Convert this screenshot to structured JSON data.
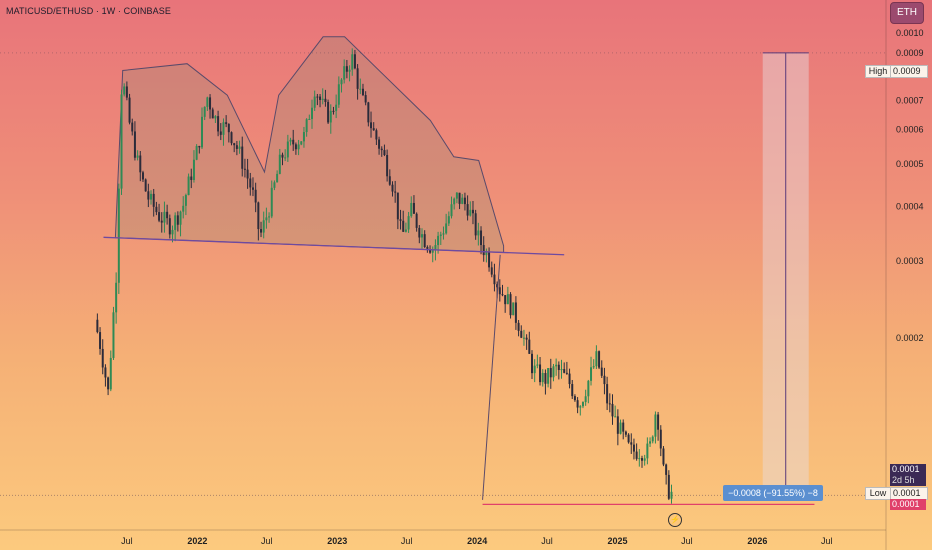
{
  "header": {
    "title": "MATICUSD/ETHUSD · 1W · COINBASE",
    "currency_button": "ETH"
  },
  "colors": {
    "up": "#2f8a55",
    "down": "#2b2b3a",
    "pattern_fill": "rgba(145,140,120,0.28)",
    "pattern_stroke": "#5a4a6a",
    "neckline": "#6e4aa0",
    "low_line": "#e0406a",
    "measure_fill": "rgba(230,220,225,0.45)"
  },
  "chart_data": {
    "type": "candlestick",
    "yscale": "log",
    "ylim": [
      7.25e-05,
      0.00119
    ],
    "x_tick_labels": [
      "Jul",
      "2022",
      "Jul",
      "2023",
      "Jul",
      "2024",
      "Jul",
      "2025",
      "Jul",
      "2026",
      "Jul"
    ],
    "x_tick_positions": [
      "2021-07",
      "2022-01",
      "2022-07",
      "2023-01",
      "2023-07",
      "2024-01",
      "2024-07",
      "2025-01",
      "2025-07",
      "2026-01",
      "2026-07"
    ],
    "y_ticks": [
      "0.0010",
      "0.0009",
      "0.0008",
      "0.0007",
      "0.0006",
      "0.0005",
      "0.0004",
      "0.0003",
      "0.0002",
      "0.0001"
    ],
    "y_tick_values": [
      0.001,
      0.0009,
      0.0008,
      0.0007,
      0.0006,
      0.0005,
      0.0004,
      0.0003,
      0.0002,
      0.0001
    ],
    "price_path": [
      [
        "2021-04-15",
        0.00022
      ],
      [
        "2021-05-01",
        0.00019
      ],
      [
        "2021-05-20",
        0.00015
      ],
      [
        "2021-06-10",
        0.00028
      ],
      [
        "2021-06-25",
        0.0008
      ],
      [
        "2021-07-15",
        0.00062
      ],
      [
        "2021-08-10",
        0.00048
      ],
      [
        "2021-09-01",
        0.00042
      ],
      [
        "2021-10-01",
        0.00038
      ],
      [
        "2021-11-01",
        0.00036
      ],
      [
        "2021-12-01",
        0.0004
      ],
      [
        "2022-01-10",
        0.00055
      ],
      [
        "2022-02-01",
        0.00072
      ],
      [
        "2022-03-01",
        0.00062
      ],
      [
        "2022-04-01",
        0.0006
      ],
      [
        "2022-05-01",
        0.00052
      ],
      [
        "2022-06-01",
        0.00043
      ],
      [
        "2022-06-20",
        0.00034
      ],
      [
        "2022-07-15",
        0.0004
      ],
      [
        "2022-08-15",
        0.00052
      ],
      [
        "2022-09-15",
        0.00056
      ],
      [
        "2022-10-15",
        0.00058
      ],
      [
        "2022-11-10",
        0.00075
      ],
      [
        "2022-12-01",
        0.00068
      ],
      [
        "2022-12-20",
        0.00064
      ],
      [
        "2023-01-20",
        0.00078
      ],
      [
        "2023-02-15",
        0.00088
      ],
      [
        "2023-03-10",
        0.00072
      ],
      [
        "2023-04-10",
        0.0006
      ],
      [
        "2023-05-10",
        0.00052
      ],
      [
        "2023-06-05",
        0.00044
      ],
      [
        "2023-06-25",
        0.00034
      ],
      [
        "2023-07-20",
        0.00039
      ],
      [
        "2023-08-20",
        0.00034
      ],
      [
        "2023-09-15",
        0.00032
      ],
      [
        "2023-10-15",
        0.00036
      ],
      [
        "2023-11-15",
        0.00042
      ],
      [
        "2023-12-15",
        0.0004
      ],
      [
        "2024-01-10",
        0.00034
      ],
      [
        "2024-02-10",
        0.0003
      ],
      [
        "2024-03-05",
        0.00026
      ],
      [
        "2024-04-01",
        0.00024
      ],
      [
        "2024-05-01",
        0.00021
      ],
      [
        "2024-06-01",
        0.00017
      ],
      [
        "2024-07-01",
        0.00016
      ],
      [
        "2024-08-01",
        0.00017
      ],
      [
        "2024-09-01",
        0.00016
      ],
      [
        "2024-10-01",
        0.00014
      ],
      [
        "2024-11-15",
        0.00018
      ],
      [
        "2024-12-15",
        0.00014
      ],
      [
        "2025-01-10",
        0.000125
      ],
      [
        "2025-02-10",
        0.00011
      ],
      [
        "2025-03-05",
        0.00011
      ],
      [
        "2025-04-01",
        0.00011
      ],
      [
        "2025-04-20",
        0.00014
      ],
      [
        "2025-05-10",
        9.5e-05
      ],
      [
        "2025-05-25",
        8.8e-05
      ]
    ],
    "annotations": {
      "high_label": "High",
      "high_value": "0.0009",
      "high_price": 0.0009,
      "current_value": "0.0001",
      "countdown": "2d 5h",
      "low_label": "Low",
      "low_value": "0.0001",
      "low_price": 8.3e-05,
      "red_value": "0.0001",
      "measure_text": "−0.0008 (−91.55%) −8",
      "flash_symbol": "⚡",
      "head_and_shoulders_outline": [
        [
          "2021-06-01",
          0.00034
        ],
        [
          "2021-06-20",
          0.00082
        ],
        [
          "2021-12-05",
          0.00085
        ],
        [
          "2022-03-20",
          0.00072
        ],
        [
          "2022-06-25",
          0.00048
        ],
        [
          "2022-08-01",
          0.00072
        ],
        [
          "2022-11-25",
          0.00098
        ],
        [
          "2023-01-20",
          0.00098
        ],
        [
          "2023-09-01",
          0.00063
        ],
        [
          "2023-11-01",
          0.00052
        ],
        [
          "2024-01-05",
          0.00051
        ],
        [
          "2024-03-10",
          0.000325
        ]
      ],
      "neckline": [
        [
          "2021-05-01",
          0.00034
        ],
        [
          "2024-08-15",
          0.00031
        ]
      ],
      "breakdown_line": [
        [
          "2024-03-01",
          0.00031
        ],
        [
          "2024-01-15",
          8.5e-05
        ]
      ],
      "low_line": [
        [
          "2024-01-15",
          8.3e-05
        ],
        [
          "2026-05-30",
          8.3e-05
        ]
      ],
      "measure_range": [
        [
          "2026-01-15",
          0.0009
        ],
        [
          "2026-05-15",
          8.5e-05
        ]
      ]
    }
  }
}
